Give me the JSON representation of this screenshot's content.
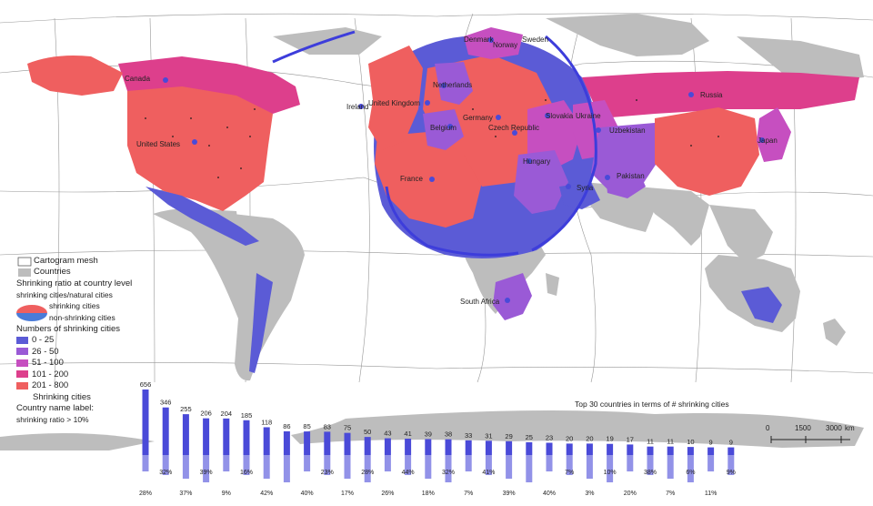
{
  "legend": {
    "mesh_label": "Cartogram mesh",
    "countries_label": "Countries",
    "ratio_title": "Shrinking ratio at country level",
    "ratio_subtitle": "shrinking cities/natural cities",
    "shrinking_label": "shrinking cities",
    "nonshrinking_label": "non-shrinking cities",
    "numbers_title": "Numbers of shrinking cities",
    "classes": [
      {
        "label": "0 - 25",
        "color": "#5b5bd6"
      },
      {
        "label": "26 - 50",
        "color": "#9a5ad6"
      },
      {
        "label": "51 - 100",
        "color": "#c64fc0"
      },
      {
        "label": "101 - 200",
        "color": "#dd3f8c"
      },
      {
        "label": "201 - 800",
        "color": "#ef5f5f"
      }
    ],
    "dot_label": "Shrinking cities",
    "name_label_line1": "Country name label:",
    "name_label_line2": "shrinking ratio > 10%"
  },
  "countries": [
    {
      "name": "Canada"
    },
    {
      "name": "United States"
    },
    {
      "name": "Ireland"
    },
    {
      "name": "United Kingdom"
    },
    {
      "name": "Denmark"
    },
    {
      "name": "Norway"
    },
    {
      "name": "Sweden"
    },
    {
      "name": "Netherlands"
    },
    {
      "name": "Germany"
    },
    {
      "name": "Belgium"
    },
    {
      "name": "Czech Republic"
    },
    {
      "name": "Slovakia"
    },
    {
      "name": "Ukraine"
    },
    {
      "name": "Hungary"
    },
    {
      "name": "France"
    },
    {
      "name": "Russia"
    },
    {
      "name": "Uzbekistan"
    },
    {
      "name": "Japan"
    },
    {
      "name": "Pakistan"
    },
    {
      "name": "Syria"
    },
    {
      "name": "South Africa"
    }
  ],
  "scale": {
    "ticks": [
      "0",
      "1500",
      "3000"
    ],
    "unit": "km"
  },
  "chart_data": {
    "type": "bar",
    "title": "Top 30 countries in terms of # shrinking cities",
    "values": [
      656,
      346,
      255,
      206,
      204,
      185,
      118,
      86,
      85,
      83,
      75,
      50,
      43,
      41,
      39,
      38,
      33,
      31,
      29,
      25,
      23,
      20,
      20,
      19,
      17,
      11,
      11,
      10,
      9,
      9
    ],
    "ratios": [
      "28%",
      "32%",
      "37%",
      "39%",
      "9%",
      "16%",
      "42%",
      "",
      "40%",
      "23%",
      "17%",
      "28%",
      "26%",
      "44%",
      "18%",
      "32%",
      "7%",
      "41%",
      "39%",
      "",
      "40%",
      "7%",
      "3%",
      "10%",
      "20%",
      "38%",
      "7%",
      "6%",
      "11%",
      "9%"
    ]
  },
  "colors": {
    "land": "#bdbdbd",
    "mesh": "#555555",
    "bar": "#4a4ad8"
  }
}
